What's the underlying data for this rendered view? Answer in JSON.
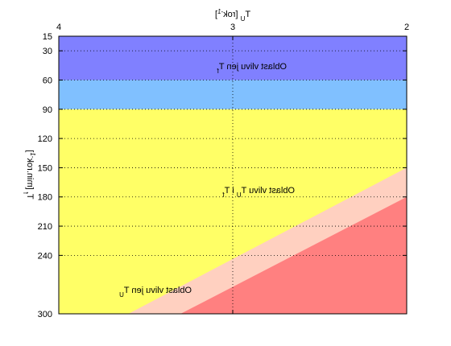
{
  "chart_data": {
    "type": "area",
    "mirrored": true,
    "xlabel": "T_U [rok^-1]",
    "ylabel": "T_f [min.rok^-1]",
    "xlim": [
      2,
      4
    ],
    "ylim": [
      15,
      300
    ],
    "y_axis_direction": "top-to-bottom",
    "x_ticks": [
      2,
      3,
      4
    ],
    "y_ticks": [
      15,
      30,
      60,
      90,
      120,
      150,
      180,
      210,
      240,
      300
    ],
    "grid": true,
    "regions": [
      {
        "name": "Oblast vlivu jen T_f",
        "label": "Oblast vlivu jen T_f",
        "color": "#8080ff",
        "y_from": 15,
        "y_to": 60
      },
      {
        "name": "band-60-90",
        "label": "",
        "color": "#80c0ff",
        "y_from": 60,
        "y_to": 90
      },
      {
        "name": "Oblast vlivu T_U i T_f",
        "label": "Oblast vlivu T_U i T_f",
        "color": "#ffff66",
        "y_from": 90,
        "y_to": 300
      },
      {
        "name": "band-pink",
        "label": "",
        "color": "#ffd0c0",
        "boundary_top": [
          [
            2,
            150
          ],
          [
            3.6,
            300
          ]
        ]
      },
      {
        "name": "Oblast vlivu jen T_U",
        "label": "Oblast vlivu jen T_U",
        "color": "#ff8080",
        "boundary_top": [
          [
            2,
            180
          ],
          [
            3.3,
            300
          ]
        ]
      }
    ]
  },
  "labels": {
    "region_tf": "Oblast vlivu jen T",
    "region_tf_sub": "f",
    "region_both": "Oblast vlivu T",
    "region_both_sub1": "U",
    "region_both_mid": " i T",
    "region_both_sub2": "f",
    "region_tu": "Oblast vlivu jen T",
    "region_tu_sub": "U",
    "xlabel_main": "T",
    "xlabel_sub": "U",
    "xlabel_rest": " [rok",
    "xlabel_sup": "-1",
    "xlabel_end": "]",
    "ylabel_main": "T",
    "ylabel_sub": "f",
    "ylabel_rest": " [min.rok",
    "ylabel_sup": "-1",
    "ylabel_end": "]"
  }
}
